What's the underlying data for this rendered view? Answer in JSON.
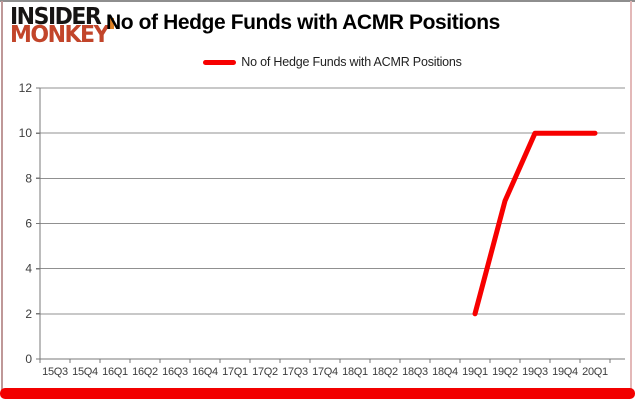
{
  "logo": {
    "line1": "INSIDER",
    "line2": "MONKEY"
  },
  "title": "No of Hedge Funds with ACMR Positions",
  "legend": {
    "label": "No of Hedge Funds with ACMR Positions"
  },
  "colors": {
    "series": "#f70000",
    "bottom_bar": "#f20000",
    "logo_monkey": "#c2452a",
    "logo_insider": "#161413",
    "grid": "#909090",
    "axis": "#787878",
    "tick_text": "#3d3d3d"
  },
  "chart_data": {
    "type": "line",
    "title": "No of Hedge Funds with ACMR Positions",
    "categories": [
      "15Q3",
      "15Q4",
      "16Q1",
      "16Q2",
      "16Q3",
      "16Q4",
      "17Q1",
      "17Q2",
      "17Q3",
      "17Q4",
      "18Q1",
      "18Q2",
      "18Q3",
      "18Q4",
      "19Q1",
      "19Q2",
      "19Q3",
      "19Q4",
      "20Q1"
    ],
    "series": [
      {
        "name": "No of Hedge Funds with ACMR Positions",
        "color": "#f70000",
        "values": [
          null,
          null,
          null,
          null,
          null,
          null,
          null,
          null,
          null,
          null,
          null,
          null,
          null,
          null,
          2,
          7,
          10,
          10,
          10
        ]
      }
    ],
    "xlabel": "",
    "ylabel": "",
    "ylim": [
      0,
      12
    ],
    "yticks": [
      0,
      2,
      4,
      6,
      8,
      10,
      12
    ],
    "grid": "horizontal",
    "legend_position": "top-center"
  }
}
